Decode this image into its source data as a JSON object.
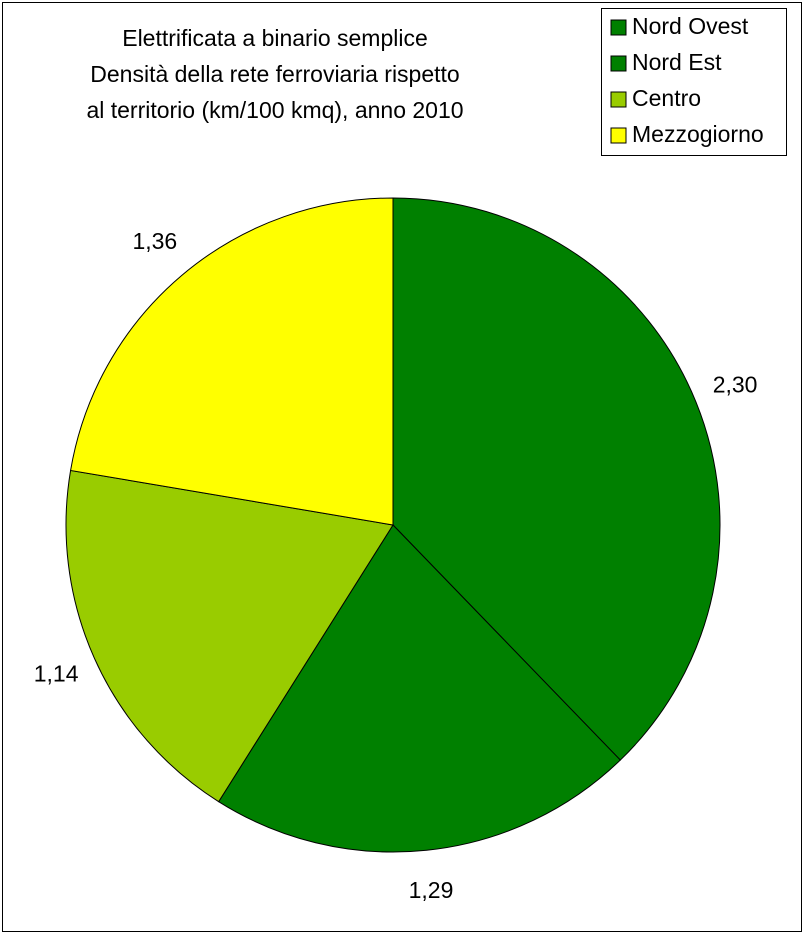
{
  "chart_data": {
    "type": "pie",
    "title": [
      "Elettrificata a binario semplice",
      "Densità della rete ferroviaria  rispetto",
      "al territorio (km/100 kmq), anno 2010"
    ],
    "categories": [
      "Nord Ovest",
      "Nord Est",
      "Centro",
      "Mezzogiorno"
    ],
    "values": [
      2.3,
      1.29,
      1.14,
      1.36
    ],
    "value_labels": [
      "2,30",
      "1,29",
      "1,14",
      "1,36"
    ],
    "colors": [
      "#008000",
      "#008000",
      "#99cc00",
      "#ffff00"
    ],
    "legend": "top-right"
  }
}
